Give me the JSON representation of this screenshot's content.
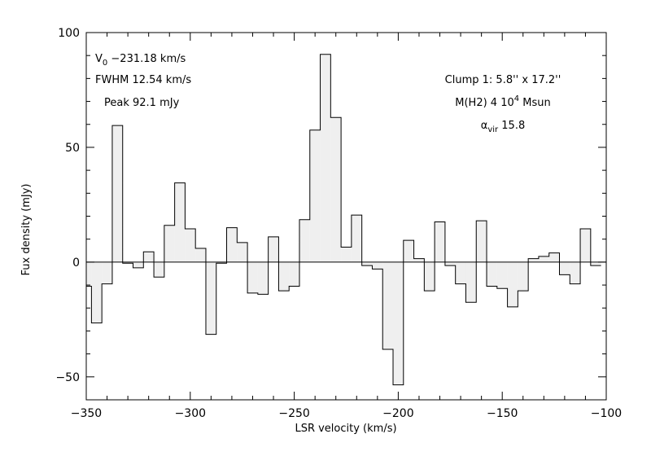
{
  "chart_data": {
    "type": "histogram-step",
    "xlabel": "LSR velocity (km/s)",
    "ylabel": "Fux density (mJy)",
    "xlim": [
      -350,
      -100
    ],
    "ylim": [
      -60,
      100
    ],
    "xticks_major": [
      -350,
      -300,
      -250,
      -200,
      -150,
      -100
    ],
    "xtick_labels": [
      "−350",
      "−300",
      "−250",
      "−200",
      "−150",
      "−100"
    ],
    "yticks_major": [
      -50,
      0,
      50,
      100
    ],
    "ytick_labels": [
      "−50",
      "0",
      "50",
      "100"
    ],
    "bin_width": 5,
    "bin_start": -352.5,
    "values": [
      -10.5,
      -26.5,
      -9.5,
      59.5,
      -0.5,
      -2.5,
      4.5,
      -6.5,
      16,
      34.5,
      14.5,
      6,
      -31.5,
      -0.5,
      15,
      8.5,
      -13.5,
      -14,
      11,
      -12.5,
      -10.5,
      18.5,
      57.5,
      90.5,
      63,
      6.5,
      20.5,
      -1.5,
      -3,
      -38,
      -53.5,
      9.5,
      1.5,
      -12.5,
      17.5,
      -1.5,
      -9.5,
      -17.5,
      18,
      -10.5,
      -11.5,
      -19.5,
      -12.5,
      1.5,
      2.5,
      4,
      -5.5,
      -9.5,
      14.5,
      -1.5
    ],
    "annotations_left": {
      "v0_label": "V",
      "v0_sub": "0",
      "v0_value": " −231.18 km/s",
      "fwhm": "FWHM 12.54 km/s",
      "peak": "Peak 92.1 mJy"
    },
    "annotations_right": {
      "clump": "Clump 1: 5.8'' x 17.2''",
      "mass_pre": "M(H2) 4 10",
      "mass_exp": "4",
      "mass_post": " Msun",
      "alpha_sym": "α",
      "alpha_sub": "vir",
      "alpha_value": " 15.8"
    }
  },
  "colors": {
    "fill": "#efefef",
    "line": "#000000",
    "background": "#ffffff"
  }
}
